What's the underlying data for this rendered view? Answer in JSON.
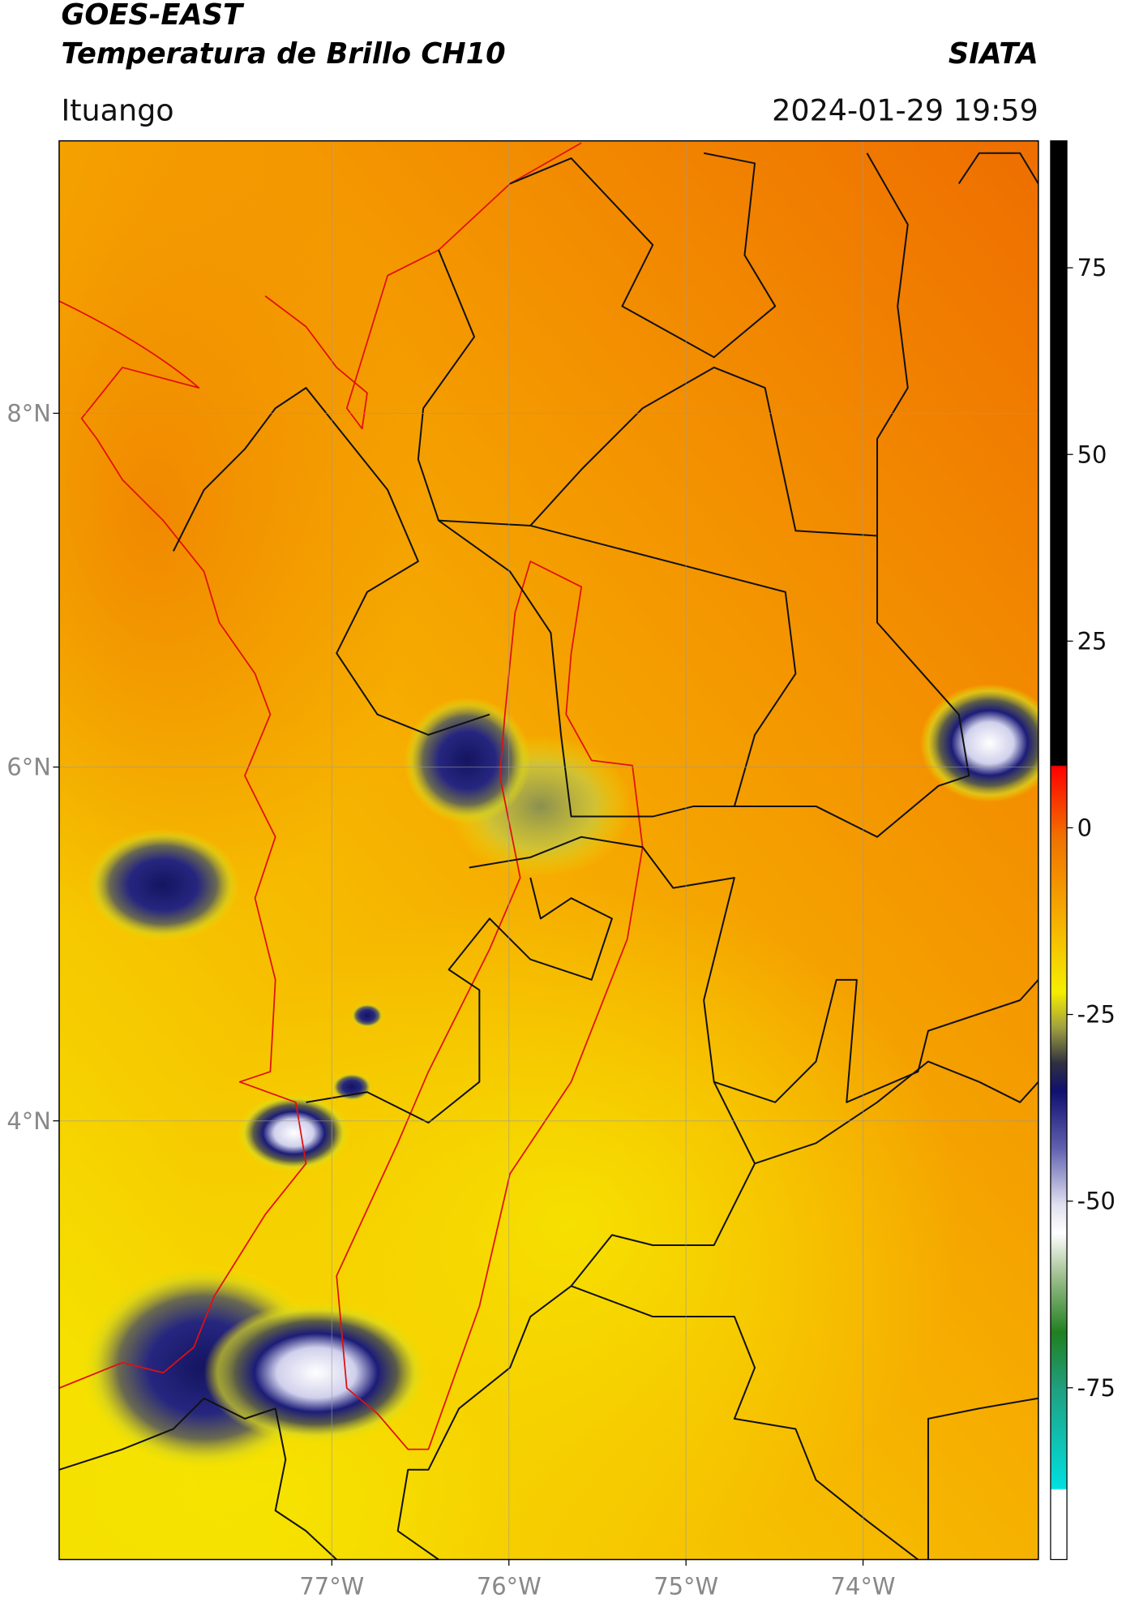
{
  "header": {
    "title_line1": "GOES-EAST",
    "title_line2": "Temperatura de Brillo CH10",
    "agency": "SIATA",
    "location": "Ituango",
    "datetime": "2024-01-29 19:59"
  },
  "map": {
    "xlim": [
      -78.54,
      -73.01
    ],
    "ylim": [
      1.52,
      9.54
    ],
    "grid": true,
    "xticks": [
      {
        "value": -77,
        "label": "77°W"
      },
      {
        "value": -76,
        "label": "76°W"
      },
      {
        "value": -75,
        "label": "75°W"
      },
      {
        "value": -74,
        "label": "74°W"
      }
    ],
    "yticks": [
      {
        "value": 8,
        "label": "8°N"
      },
      {
        "value": 6,
        "label": "6°N"
      },
      {
        "value": 4,
        "label": "4°N"
      }
    ]
  },
  "colorbar": {
    "range": [
      -98,
      92
    ],
    "ticks": [
      75,
      50,
      25,
      0,
      -25,
      -50,
      -75
    ]
  }
}
